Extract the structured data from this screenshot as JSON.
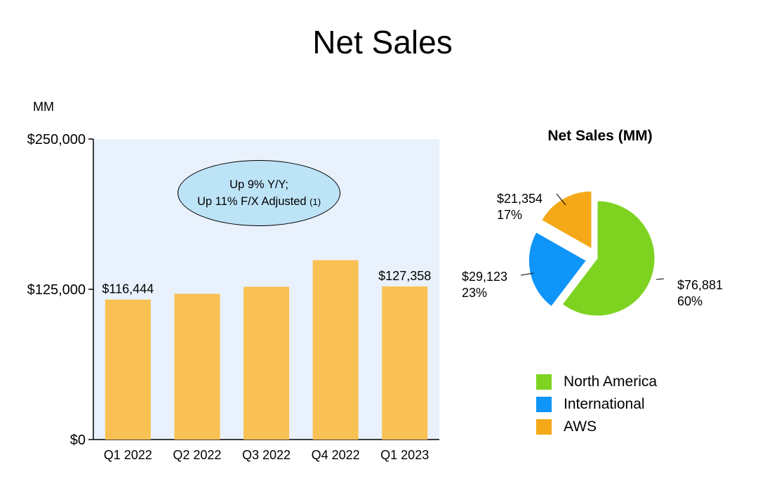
{
  "title": "Net Sales",
  "unit_label": "MM",
  "callout": {
    "line1": "Up 9% Y/Y;",
    "line2": "Up 11% F/X Adjusted",
    "note": "(1)"
  },
  "colors": {
    "bar": "#f9c153",
    "plot_bg": "#e9f1fc",
    "callout_bg": "#bde3f7",
    "north_america": "#7ed321",
    "international": "#0f95f7",
    "aws": "#f5a918"
  },
  "chart_data": [
    {
      "type": "bar",
      "title": "",
      "categories": [
        "Q1 2022",
        "Q2 2022",
        "Q3 2022",
        "Q4 2022",
        "Q1 2023"
      ],
      "values": [
        116444,
        121234,
        127101,
        149204,
        127358
      ],
      "data_labels": [
        "$116,444",
        "",
        "",
        "",
        "$127,358"
      ],
      "ylim": [
        0,
        250000
      ],
      "yticks": [
        0,
        125000,
        250000
      ],
      "ytick_labels": [
        "$0",
        "$125,000",
        "$250,000"
      ],
      "ylabel": "MM",
      "xlabel": "",
      "grid": false
    },
    {
      "type": "pie",
      "title": "Net Sales (MM)",
      "slices": [
        {
          "name": "North America",
          "value": 76881,
          "label": "$76,881",
          "percent": "60%",
          "exploded": false
        },
        {
          "name": "International",
          "value": 29123,
          "label": "$29,123",
          "percent": "23%",
          "exploded": true
        },
        {
          "name": "AWS",
          "value": 21354,
          "label": "$21,354",
          "percent": "17%",
          "exploded": true
        }
      ],
      "legend": [
        "North America",
        "International",
        "AWS"
      ],
      "legend_position": "bottom"
    }
  ]
}
